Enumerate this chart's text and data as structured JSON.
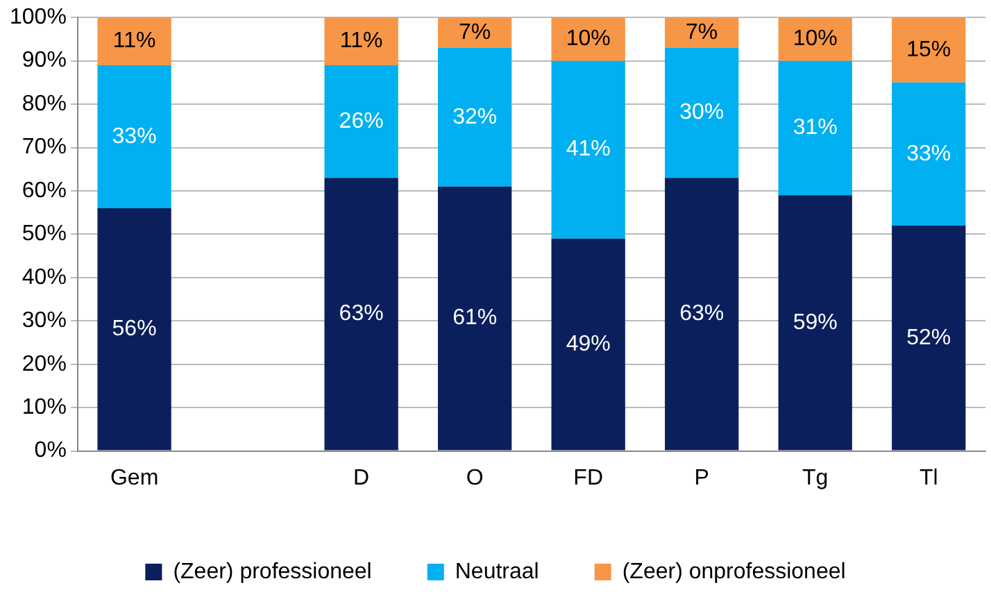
{
  "chart_data": {
    "type": "bar",
    "stacked": true,
    "categories": [
      "Gem",
      null,
      "D",
      "O",
      "FD",
      "P",
      "Tg",
      "Tl"
    ],
    "series": [
      {
        "name": "(Zeer) professioneel",
        "color": "#0a1f5c",
        "values": [
          56,
          null,
          63,
          61,
          49,
          63,
          59,
          52
        ],
        "value_labels": [
          "56%",
          null,
          "63%",
          "61%",
          "49%",
          "63%",
          "59%",
          "52%"
        ]
      },
      {
        "name": "Neutraal",
        "color": "#00b0f0",
        "values": [
          33,
          null,
          26,
          32,
          41,
          30,
          31,
          33
        ],
        "value_labels": [
          "33%",
          null,
          "26%",
          "32%",
          "41%",
          "30%",
          "31%",
          "33%"
        ]
      },
      {
        "name": "(Zeer) onprofessioneel",
        "color": "#f79646",
        "values": [
          11,
          null,
          11,
          7,
          10,
          7,
          10,
          15
        ],
        "value_labels": [
          "11%",
          null,
          "11%",
          "7%",
          "10%",
          "7%",
          "10%",
          "15%"
        ]
      }
    ],
    "ylim": [
      0,
      100
    ],
    "yticks": [
      {
        "value": 0,
        "label": "0%"
      },
      {
        "value": 10,
        "label": "10%"
      },
      {
        "value": 20,
        "label": "20%"
      },
      {
        "value": 30,
        "label": "30%"
      },
      {
        "value": 40,
        "label": "40%"
      },
      {
        "value": 50,
        "label": "50%"
      },
      {
        "value": 60,
        "label": "60%"
      },
      {
        "value": 70,
        "label": "70%"
      },
      {
        "value": 80,
        "label": "80%"
      },
      {
        "value": 90,
        "label": "90%"
      },
      {
        "value": 100,
        "label": "100%"
      }
    ],
    "grid": "y",
    "legend": "bottom"
  }
}
